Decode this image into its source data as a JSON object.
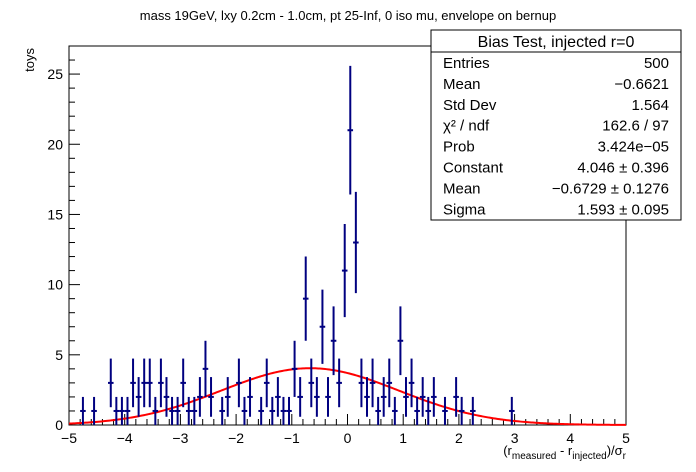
{
  "chart_data": {
    "type": "scatter",
    "title": "mass 19GeV, lxy 0.2cm - 1.0cm, pt 25-Inf, 0 iso mu, envelope on bernup",
    "xlabel_parts": [
      "(r",
      "measured",
      " - r",
      "injected",
      ")/σ",
      "r"
    ],
    "ylabel": "toys",
    "xlim": [
      -5,
      5
    ],
    "ylim": [
      0,
      27
    ],
    "x_ticks": [
      "−5",
      "−4",
      "−3",
      "−2",
      "−1",
      "0",
      "1",
      "2",
      "3",
      "4",
      "5"
    ],
    "y_ticks": [
      "0",
      "5",
      "10",
      "15",
      "20",
      "25"
    ],
    "bin_width": 0.1,
    "series": [
      {
        "kind": "histogram-errorbars",
        "color": "#000080",
        "points": [
          {
            "x": -4.75,
            "y": 1
          },
          {
            "x": -4.55,
            "y": 1
          },
          {
            "x": -4.15,
            "y": 1
          },
          {
            "x": -4.05,
            "y": 1
          },
          {
            "x": -4.25,
            "y": 3
          },
          {
            "x": -3.85,
            "y": 3
          },
          {
            "x": -3.95,
            "y": 1
          },
          {
            "x": -3.75,
            "y": 2
          },
          {
            "x": -3.65,
            "y": 3
          },
          {
            "x": -3.55,
            "y": 3
          },
          {
            "x": -3.45,
            "y": 1
          },
          {
            "x": -3.35,
            "y": 3
          },
          {
            "x": -3.25,
            "y": 2
          },
          {
            "x": -3.15,
            "y": 1
          },
          {
            "x": -3.05,
            "y": 1
          },
          {
            "x": -2.95,
            "y": 3
          },
          {
            "x": -2.85,
            "y": 1
          },
          {
            "x": -2.75,
            "y": 1
          },
          {
            "x": -2.65,
            "y": 2
          },
          {
            "x": -2.55,
            "y": 4
          },
          {
            "x": -2.45,
            "y": 2
          },
          {
            "x": -2.25,
            "y": 1
          },
          {
            "x": -2.15,
            "y": 2
          },
          {
            "x": -1.95,
            "y": 3
          },
          {
            "x": -1.85,
            "y": 1
          },
          {
            "x": -1.75,
            "y": 2
          },
          {
            "x": -1.55,
            "y": 1
          },
          {
            "x": -1.45,
            "y": 3
          },
          {
            "x": -1.35,
            "y": 1
          },
          {
            "x": -1.25,
            "y": 2
          },
          {
            "x": -1.15,
            "y": 1
          },
          {
            "x": -1.05,
            "y": 1
          },
          {
            "x": -0.95,
            "y": 4
          },
          {
            "x": -0.85,
            "y": 2
          },
          {
            "x": -0.75,
            "y": 9
          },
          {
            "x": -0.65,
            "y": 3
          },
          {
            "x": -0.55,
            "y": 2
          },
          {
            "x": -0.45,
            "y": 7
          },
          {
            "x": -0.35,
            "y": 2
          },
          {
            "x": -0.25,
            "y": 6
          },
          {
            "x": -0.15,
            "y": 3
          },
          {
            "x": -0.05,
            "y": 11
          },
          {
            "x": 0.05,
            "y": 21
          },
          {
            "x": 0.15,
            "y": 13
          },
          {
            "x": 0.25,
            "y": 3
          },
          {
            "x": 0.35,
            "y": 2
          },
          {
            "x": 0.45,
            "y": 3
          },
          {
            "x": 0.55,
            "y": 1
          },
          {
            "x": 0.65,
            "y": 2
          },
          {
            "x": 0.75,
            "y": 3
          },
          {
            "x": 0.85,
            "y": 1
          },
          {
            "x": 0.95,
            "y": 6
          },
          {
            "x": 1.05,
            "y": 2
          },
          {
            "x": 1.15,
            "y": 3
          },
          {
            "x": 1.25,
            "y": 1
          },
          {
            "x": 1.35,
            "y": 2
          },
          {
            "x": 1.45,
            "y": 1
          },
          {
            "x": 1.55,
            "y": 2
          },
          {
            "x": 1.75,
            "y": 1
          },
          {
            "x": 1.95,
            "y": 2
          },
          {
            "x": 2.05,
            "y": 1
          },
          {
            "x": 2.25,
            "y": 1
          },
          {
            "x": 2.95,
            "y": 1
          }
        ]
      },
      {
        "kind": "gaussian-fit",
        "color": "#ff0000",
        "constant": 4.046,
        "mean": -0.6729,
        "sigma": 1.593
      }
    ]
  },
  "stats_box": {
    "title": "Bias Test, injected r=0",
    "rows": [
      {
        "label": "Entries",
        "value": "500"
      },
      {
        "label": "Mean",
        "value": "−0.6621"
      },
      {
        "label": "Std Dev",
        "value": "1.564"
      },
      {
        "label": "χ² / ndf",
        "value": "162.6 / 97"
      },
      {
        "label": "Prob",
        "value": "3.424e−05"
      },
      {
        "label": "Constant",
        "value": "4.046 ± 0.396"
      },
      {
        "label": "Mean",
        "value": "−0.6729 ± 0.1276"
      },
      {
        "label": "Sigma",
        "value": "1.593 ± 0.095"
      }
    ]
  }
}
